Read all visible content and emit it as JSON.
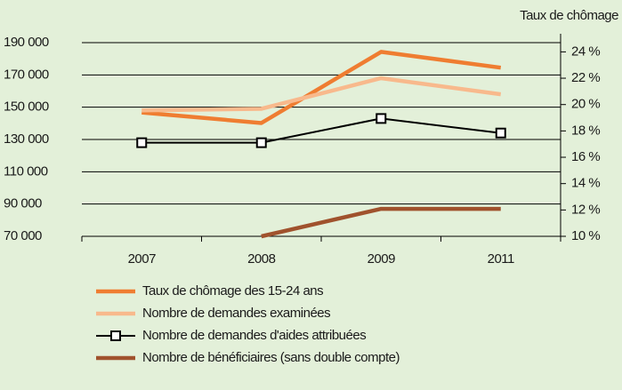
{
  "chart_data": {
    "type": "line",
    "y2_label": "Taux de chômage",
    "categories": [
      "2007",
      "2008",
      "2009",
      "2011"
    ],
    "ylim": [
      70000,
      190000
    ],
    "yticks": [
      {
        "value": 70000,
        "label": "70 000"
      },
      {
        "value": 90000,
        "label": "90 000"
      },
      {
        "value": 110000,
        "label": "110 000"
      },
      {
        "value": 130000,
        "label": "130 000"
      },
      {
        "value": 150000,
        "label": "150 000"
      },
      {
        "value": 170000,
        "label": "170 000"
      },
      {
        "value": 190000,
        "label": "190 000"
      }
    ],
    "y2lim": [
      10,
      24.7
    ],
    "y2ticks": [
      {
        "value": 10,
        "label": "10 %"
      },
      {
        "value": 12,
        "label": "12 %"
      },
      {
        "value": 14,
        "label": "14 %"
      },
      {
        "value": 16,
        "label": "16 %"
      },
      {
        "value": 18,
        "label": "18 %"
      },
      {
        "value": 20,
        "label": "20 %"
      },
      {
        "value": 22,
        "label": "22 %"
      },
      {
        "value": 24,
        "label": "24 %"
      }
    ],
    "grid": true,
    "series": [
      {
        "name": "Taux de chômage des 15-24 ans",
        "color": "#ef7d31",
        "axis": "y2",
        "values": [
          19.4,
          18.6,
          24,
          22.8
        ]
      },
      {
        "name": "Nombre de demandes examinées",
        "color": "#f8b98c",
        "values": [
          148000,
          149000,
          168000,
          158000
        ]
      },
      {
        "name": "Nombre de demandes d'aides attribuées",
        "color": "#000000",
        "marker": "square",
        "values": [
          128000,
          128000,
          143000,
          134000
        ]
      },
      {
        "name": "Nombre de bénéficiaires (sans double compte)",
        "color": "#a0522d",
        "values": [
          null,
          70000,
          87000,
          87000
        ]
      }
    ]
  }
}
